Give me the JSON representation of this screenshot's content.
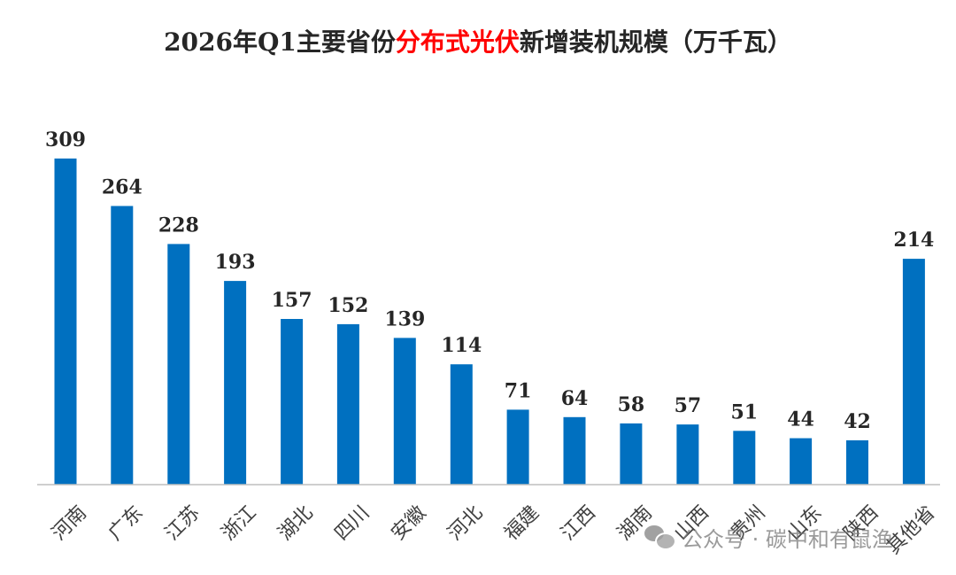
{
  "chart_data": {
    "type": "bar",
    "title_parts": [
      "2026年Q1主要省份",
      "分布式光伏",
      "新增装机规模（万千瓦）"
    ],
    "categories": [
      "河南",
      "广东",
      "江苏",
      "浙江",
      "湖北",
      "四川",
      "安徽",
      "河北",
      "福建",
      "江西",
      "湖南",
      "山西",
      "贵州",
      "山东",
      "陕西",
      "其他省"
    ],
    "values": [
      309,
      264,
      228,
      193,
      157,
      152,
      139,
      114,
      71,
      64,
      58,
      57,
      51,
      44,
      42,
      214
    ],
    "ylim": [
      0,
      340
    ],
    "bar_color": "#0070C0",
    "title_highlight_color": "#FF0000",
    "grid": false,
    "legend": "none"
  },
  "watermark": {
    "icon": "wechat-icon",
    "text": "公众号 · 碳中和有鼠渔"
  }
}
